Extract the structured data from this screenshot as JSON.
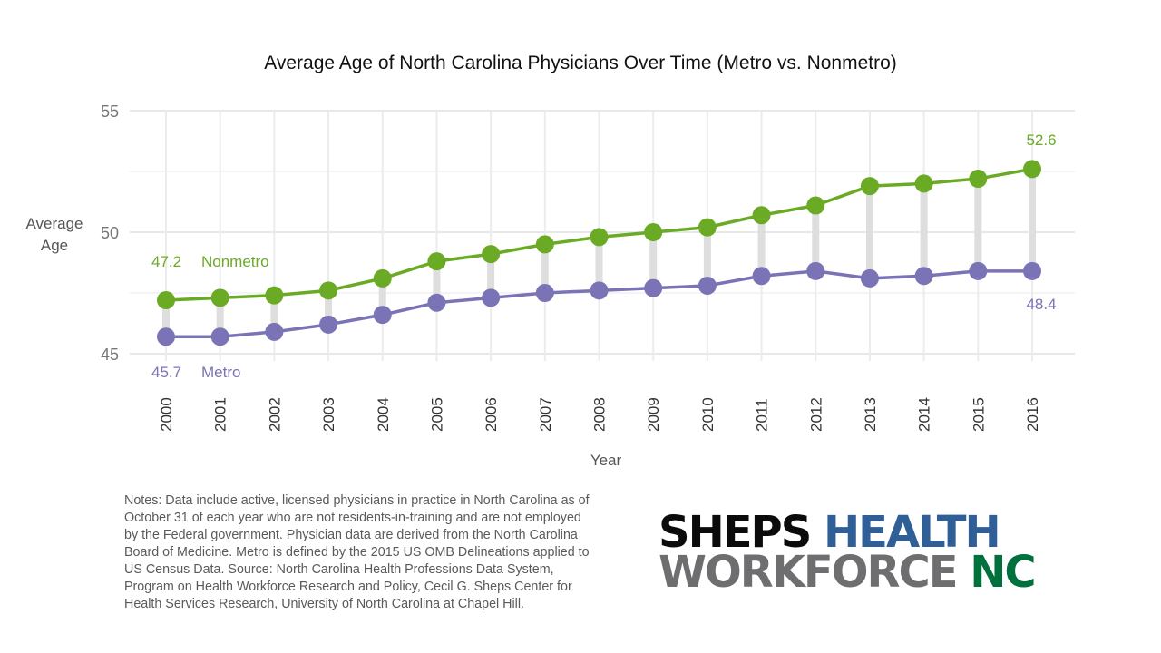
{
  "chart_data": {
    "type": "line",
    "title": "Average Age of North Carolina Physicians Over Time (Metro vs. Nonmetro)",
    "xlabel": "Year",
    "ylabel": "Average Age",
    "ylim": [
      44.5,
      55
    ],
    "yticks": [
      45,
      50,
      55
    ],
    "grid": true,
    "x": [
      "2000",
      "2001",
      "2002",
      "2003",
      "2004",
      "2005",
      "2006",
      "2007",
      "2008",
      "2009",
      "2010",
      "2011",
      "2012",
      "2013",
      "2014",
      "2015",
      "2016"
    ],
    "series": [
      {
        "name": "Nonmetro",
        "color": "#6aaa25",
        "values": [
          47.2,
          47.3,
          47.4,
          47.6,
          48.1,
          48.8,
          49.1,
          49.5,
          49.8,
          50.0,
          50.2,
          50.7,
          51.1,
          51.9,
          52.0,
          52.2,
          52.6
        ],
        "start_label": "47.2",
        "end_label": "52.6"
      },
      {
        "name": "Metro",
        "color": "#7a74b6",
        "values": [
          45.7,
          45.7,
          45.9,
          46.2,
          46.6,
          47.1,
          47.3,
          47.5,
          47.6,
          47.7,
          47.8,
          48.2,
          48.4,
          48.1,
          48.2,
          48.4,
          48.4
        ],
        "start_label": "45.7",
        "end_label": "48.4"
      }
    ]
  },
  "notes": "Notes: Data include active, licensed physicians in practice in North Carolina as of October 31 of each year who are not residents-in-training and are not employed by the Federal government.  Physician data are derived from the North Carolina Board of Medicine. Metro is defined by the 2015 US OMB Delineations applied to US Census Data. Source: North Carolina Health Professions Data System, Program on Health Workforce Research and Policy, Cecil G. Sheps Center for Health Services Research, University of North Carolina at Chapel Hill.",
  "logo": {
    "word1": "SHEPS",
    "word2": "HEALTH",
    "word3": "WORKFORCE",
    "word4": "NC"
  }
}
